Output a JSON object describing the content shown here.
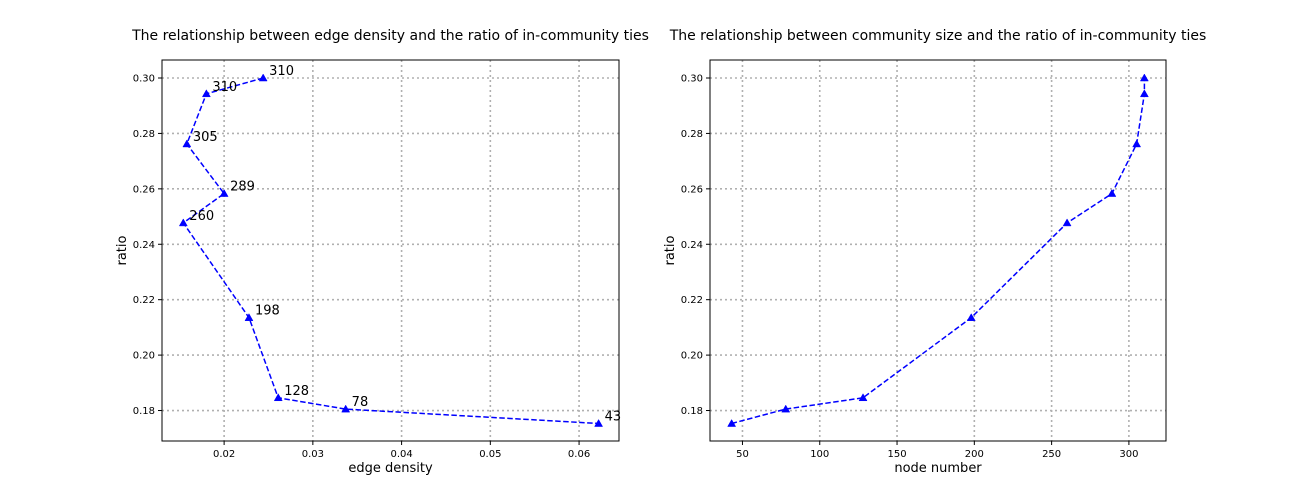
{
  "chart_data": [
    {
      "type": "line",
      "title": "The relationship between edge density and the ratio of in-community ties",
      "xlabel": "edge density",
      "ylabel": "ratio",
      "xlim": [
        0.013,
        0.0645
      ],
      "ylim": [
        0.169,
        0.3065
      ],
      "xticks": [
        0.02,
        0.03,
        0.04,
        0.05,
        0.06
      ],
      "xtick_labels": [
        "0.02",
        "0.03",
        "0.04",
        "0.05",
        "0.06"
      ],
      "yticks": [
        0.18,
        0.2,
        0.22,
        0.24,
        0.26,
        0.28,
        0.3
      ],
      "ytick_labels": [
        "0.18",
        "0.20",
        "0.22",
        "0.24",
        "0.26",
        "0.28",
        "0.30"
      ],
      "grid": true,
      "series": [
        {
          "color": "#0000ff",
          "linestyle": "dashed",
          "marker": "triangle-up",
          "points": [
            {
              "x": 0.0244,
              "y": 0.3,
              "label": "310"
            },
            {
              "x": 0.018,
              "y": 0.2943,
              "label": "310"
            },
            {
              "x": 0.0158,
              "y": 0.2762,
              "label": "305"
            },
            {
              "x": 0.02,
              "y": 0.2583,
              "label": "289"
            },
            {
              "x": 0.0154,
              "y": 0.2477,
              "label": "260"
            },
            {
              "x": 0.0228,
              "y": 0.2135,
              "label": "198"
            },
            {
              "x": 0.0261,
              "y": 0.1846,
              "label": "128"
            },
            {
              "x": 0.0337,
              "y": 0.1805,
              "label": "78"
            },
            {
              "x": 0.0622,
              "y": 0.1753,
              "label": "43"
            }
          ]
        }
      ]
    },
    {
      "type": "line",
      "title": "The relationship between community size and the ratio of in-community ties",
      "xlabel": "node number",
      "ylabel": "ratio",
      "xlim": [
        29,
        324
      ],
      "ylim": [
        0.169,
        0.3065
      ],
      "xticks": [
        50,
        100,
        150,
        200,
        250,
        300
      ],
      "xtick_labels": [
        "50",
        "100",
        "150",
        "200",
        "250",
        "300"
      ],
      "yticks": [
        0.18,
        0.2,
        0.22,
        0.24,
        0.26,
        0.28,
        0.3
      ],
      "ytick_labels": [
        "0.18",
        "0.20",
        "0.22",
        "0.24",
        "0.26",
        "0.28",
        "0.30"
      ],
      "grid": true,
      "series": [
        {
          "color": "#0000ff",
          "linestyle": "dashed",
          "marker": "triangle-up",
          "points": [
            {
              "x": 43,
              "y": 0.1753
            },
            {
              "x": 78,
              "y": 0.1805
            },
            {
              "x": 128,
              "y": 0.1846
            },
            {
              "x": 198,
              "y": 0.2135
            },
            {
              "x": 260,
              "y": 0.2477
            },
            {
              "x": 289,
              "y": 0.2583
            },
            {
              "x": 305,
              "y": 0.2762
            },
            {
              "x": 310,
              "y": 0.2943
            },
            {
              "x": 310,
              "y": 0.3
            }
          ]
        }
      ]
    }
  ]
}
